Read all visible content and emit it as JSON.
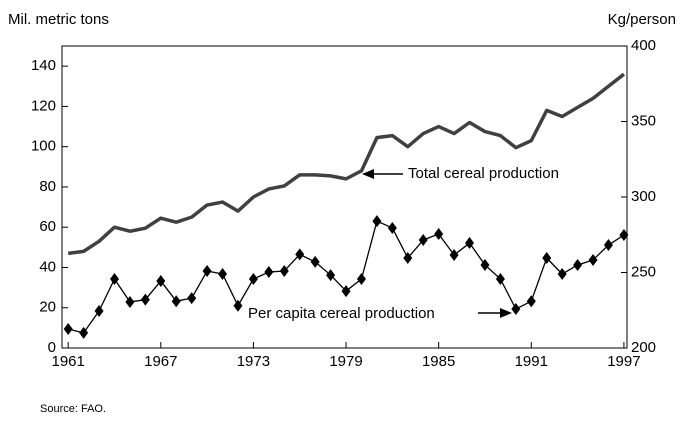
{
  "chart_data": {
    "type": "line",
    "ylabel": "Mil. metric tons",
    "y2label": "Kg/person",
    "source": "Source: FAO.",
    "annotations": [
      "Total cereal production",
      "Per capita cereal production"
    ],
    "x": [
      1961,
      1962,
      1963,
      1964,
      1965,
      1966,
      1967,
      1968,
      1969,
      1970,
      1971,
      1972,
      1973,
      1974,
      1975,
      1976,
      1977,
      1978,
      1979,
      1980,
      1981,
      1982,
      1983,
      1984,
      1985,
      1986,
      1987,
      1988,
      1989,
      1990,
      1991,
      1992,
      1993,
      1994,
      1995,
      1996,
      1997
    ],
    "xlim": [
      1960.6,
      1997.2
    ],
    "xticks": [
      1961,
      1967,
      1973,
      1979,
      1985,
      1991,
      1997
    ],
    "ylim": [
      0,
      150
    ],
    "yticks": [
      0,
      20,
      40,
      60,
      80,
      100,
      120,
      140
    ],
    "y2lim": [
      200,
      400
    ],
    "y2ticks": [
      200,
      250,
      300,
      350,
      400
    ],
    "series": [
      {
        "name": "Total cereal production",
        "color": "#404040",
        "values": [
          47,
          48,
          53,
          60,
          58,
          59.5,
          64.5,
          62.5,
          65,
          71,
          72.5,
          68,
          75,
          79,
          80.5,
          86,
          86,
          85.5,
          84,
          88,
          104.5,
          105.5,
          100,
          106.5,
          110,
          106.5,
          112,
          107.5,
          105.5,
          99.5,
          103,
          118,
          115,
          119.5,
          124,
          130,
          136
        ]
      },
      {
        "name": "Per capita cereal production",
        "color": "#000000",
        "axis": "y2",
        "values": [
          212.6,
          210,
          224.5,
          245.7,
          230.5,
          232,
          244.4,
          231,
          233,
          251,
          249,
          228,
          245.7,
          250.3,
          251,
          262,
          257,
          248.3,
          237.7,
          245.7,
          284,
          279.5,
          259.6,
          271.5,
          275.5,
          261.6,
          269.5,
          255,
          245.7,
          225.8,
          231,
          259.6,
          249,
          255,
          258.3,
          268.2,
          274.8
        ]
      }
    ]
  }
}
